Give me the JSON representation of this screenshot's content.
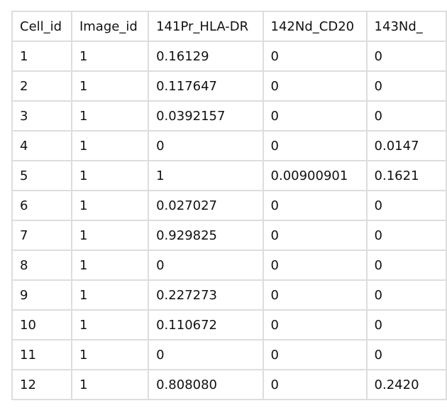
{
  "table": {
    "columns": [
      "Cell_id",
      "Image_id",
      "141Pr_HLA-DR",
      "142Nd_CD20",
      "143Nd_"
    ],
    "rows": [
      [
        "1",
        "1",
        "0.16129",
        "0",
        "0"
      ],
      [
        "2",
        "1",
        "0.117647",
        "0",
        "0"
      ],
      [
        "3",
        "1",
        "0.0392157",
        "0",
        "0"
      ],
      [
        "4",
        "1",
        "0",
        "0",
        "0.0147"
      ],
      [
        "5",
        "1",
        "1",
        "0.00900901",
        "0.1621"
      ],
      [
        "6",
        "1",
        "0.027027",
        "0",
        "0"
      ],
      [
        "7",
        "1",
        "0.929825",
        "0",
        "0"
      ],
      [
        "8",
        "1",
        "0",
        "0",
        "0"
      ],
      [
        "9",
        "1",
        "0.227273",
        "0",
        "0"
      ],
      [
        "10",
        "1",
        "0.110672",
        "0",
        "0"
      ],
      [
        "11",
        "1",
        "0",
        "0",
        "0"
      ],
      [
        "12",
        "1",
        "0.808080",
        "0",
        "0.2420"
      ]
    ]
  }
}
